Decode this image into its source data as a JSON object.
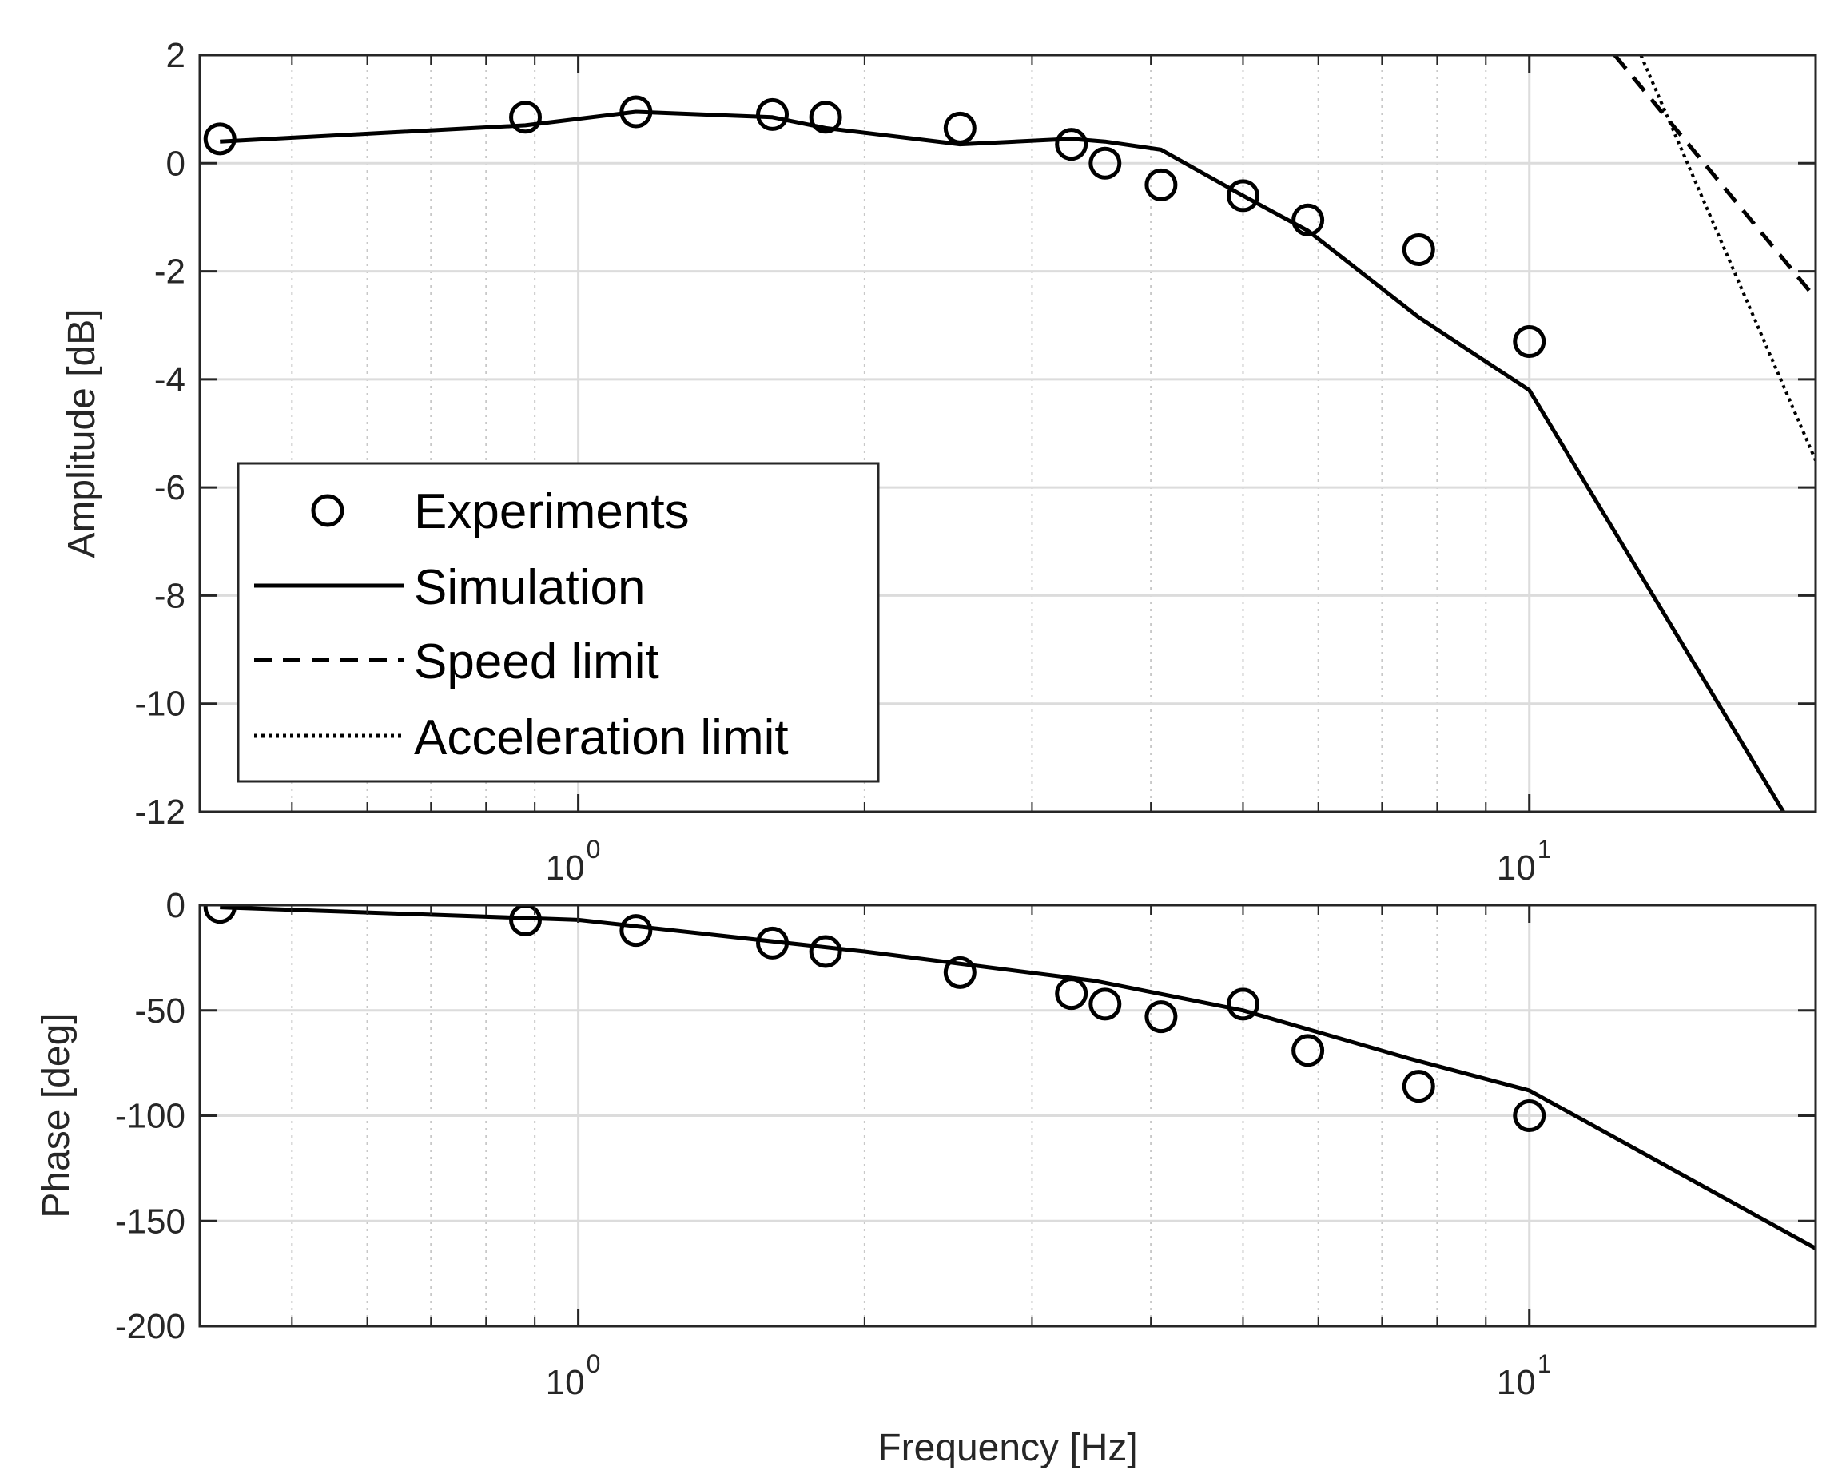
{
  "chart_data": [
    {
      "type": "line",
      "name": "amplitude-plot",
      "xscale": "log",
      "xlim": [
        0.4,
        20
      ],
      "ylim": [
        -12,
        2
      ],
      "ylabel": "Amplitude [dB]",
      "xlabel": "",
      "grid": true,
      "x_ticks": [
        {
          "value": 1,
          "base": "10",
          "exp": "0"
        },
        {
          "value": 10,
          "base": "10",
          "exp": "1"
        }
      ],
      "y_ticks": [
        {
          "value": 2,
          "label": "2"
        },
        {
          "value": 0,
          "label": "0"
        },
        {
          "value": -2,
          "label": "-2"
        },
        {
          "value": -4,
          "label": "-4"
        },
        {
          "value": -6,
          "label": "-6"
        },
        {
          "value": -8,
          "label": "-8"
        },
        {
          "value": -10,
          "label": "-10"
        },
        {
          "value": -12,
          "label": "-12"
        }
      ],
      "legend": {
        "location": "bottom-left",
        "entries": [
          "Experiments",
          "Simulation",
          "Speed limit",
          "Acceleration limit"
        ]
      },
      "series": [
        {
          "name": "Experiments",
          "style": "markers",
          "x": [
            0.42,
            0.88,
            1.15,
            1.6,
            1.82,
            2.52,
            3.3,
            3.58,
            4.1,
            5.0,
            5.85,
            7.65,
            10.0
          ],
          "y": [
            0.45,
            0.85,
            0.95,
            0.9,
            0.85,
            0.65,
            0.35,
            0.0,
            -0.4,
            -0.6,
            -1.05,
            -1.6,
            -3.3
          ]
        },
        {
          "name": "Simulation",
          "style": "solid",
          "x": [
            0.42,
            0.88,
            1.15,
            1.6,
            1.82,
            2.52,
            3.3,
            3.58,
            4.1,
            5.0,
            5.85,
            7.65,
            10.0,
            18.5
          ],
          "y": [
            0.4,
            0.7,
            0.95,
            0.85,
            0.65,
            0.35,
            0.45,
            0.4,
            0.25,
            -0.6,
            -1.25,
            -2.85,
            -4.2,
            -12.0
          ]
        },
        {
          "name": "Speed limit",
          "style": "dashed",
          "x": [
            12.3,
            20.0
          ],
          "y": [
            2.0,
            -2.5
          ]
        },
        {
          "name": "Acceleration limit",
          "style": "dotted",
          "x": [
            13.1,
            20.0
          ],
          "y": [
            2.0,
            -5.5
          ]
        }
      ]
    },
    {
      "type": "line",
      "name": "phase-plot",
      "xscale": "log",
      "xlim": [
        0.4,
        20
      ],
      "ylim": [
        -200,
        0
      ],
      "ylabel": "Phase [deg]",
      "xlabel": "Frequency [Hz]",
      "grid": true,
      "x_ticks": [
        {
          "value": 1,
          "base": "10",
          "exp": "0"
        },
        {
          "value": 10,
          "base": "10",
          "exp": "1"
        }
      ],
      "y_ticks": [
        {
          "value": 0,
          "label": "0"
        },
        {
          "value": -50,
          "label": "-50"
        },
        {
          "value": -100,
          "label": "-100"
        },
        {
          "value": -150,
          "label": "-150"
        },
        {
          "value": -200,
          "label": "-200"
        }
      ],
      "series": [
        {
          "name": "Experiments",
          "style": "markers",
          "x": [
            0.42,
            0.88,
            1.15,
            1.6,
            1.82,
            2.52,
            3.3,
            3.58,
            4.1,
            5.0,
            5.85,
            7.65,
            10.0
          ],
          "y": [
            -1,
            -7,
            -12,
            -18,
            -22,
            -32,
            -42,
            -47,
            -53,
            -47,
            -69,
            -86,
            -100
          ]
        },
        {
          "name": "Simulation",
          "style": "solid",
          "x": [
            0.42,
            1.0,
            2.0,
            3.5,
            5.0,
            7.5,
            10.0,
            20.0
          ],
          "y": [
            -1,
            -7,
            -22,
            -36,
            -50,
            -73,
            -88,
            -163
          ]
        }
      ]
    }
  ]
}
